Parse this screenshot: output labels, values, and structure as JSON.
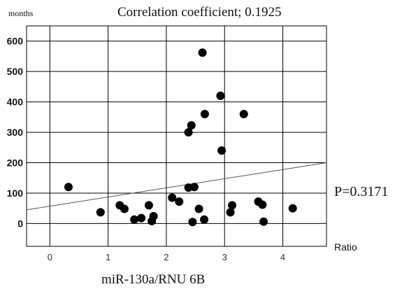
{
  "chart_data": {
    "type": "scatter",
    "title": "Correlation coefficient; 0.1925",
    "ylabel": "months",
    "xlabel": "Ratio",
    "caption": "miR-130a/RNU 6B",
    "annotation": "P=0.3171",
    "xlim": [
      -0.4,
      4.75
    ],
    "ylim": [
      -75,
      650
    ],
    "x_ticks": [
      0,
      1,
      2,
      3,
      4
    ],
    "y_ticks": [
      0,
      100,
      200,
      300,
      400,
      500,
      600
    ],
    "grid": true,
    "point_color": "#000000",
    "trendline": {
      "x": [
        -0.4,
        4.75
      ],
      "y": [
        45,
        200
      ]
    },
    "points": [
      {
        "x": 0.32,
        "y": 120
      },
      {
        "x": 0.87,
        "y": 37
      },
      {
        "x": 1.2,
        "y": 60
      },
      {
        "x": 1.28,
        "y": 48
      },
      {
        "x": 1.45,
        "y": 13
      },
      {
        "x": 1.57,
        "y": 18
      },
      {
        "x": 1.7,
        "y": 60
      },
      {
        "x": 1.75,
        "y": 8
      },
      {
        "x": 1.78,
        "y": 24
      },
      {
        "x": 2.1,
        "y": 85
      },
      {
        "x": 2.22,
        "y": 72
      },
      {
        "x": 2.38,
        "y": 300
      },
      {
        "x": 2.38,
        "y": 118
      },
      {
        "x": 2.43,
        "y": 323
      },
      {
        "x": 2.45,
        "y": 5
      },
      {
        "x": 2.48,
        "y": 120
      },
      {
        "x": 2.56,
        "y": 48
      },
      {
        "x": 2.62,
        "y": 562
      },
      {
        "x": 2.66,
        "y": 360
      },
      {
        "x": 2.65,
        "y": 13
      },
      {
        "x": 2.93,
        "y": 420
      },
      {
        "x": 2.95,
        "y": 240
      },
      {
        "x": 3.1,
        "y": 37
      },
      {
        "x": 3.13,
        "y": 60
      },
      {
        "x": 3.33,
        "y": 360
      },
      {
        "x": 3.58,
        "y": 72
      },
      {
        "x": 3.65,
        "y": 62
      },
      {
        "x": 3.67,
        "y": 6
      },
      {
        "x": 4.17,
        "y": 50
      }
    ]
  }
}
